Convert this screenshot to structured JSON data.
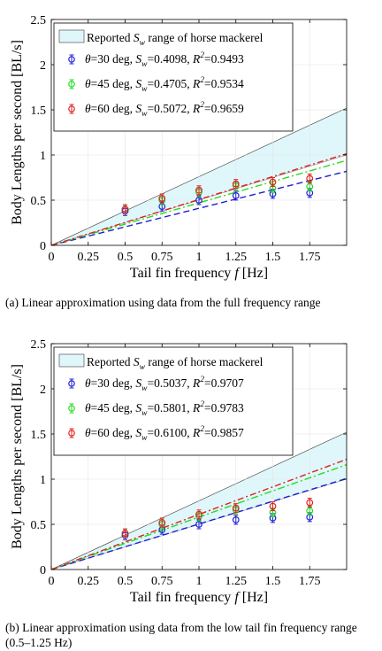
{
  "chart_data": [
    {
      "type": "scatter",
      "xlabel": "Tail fin frequency f [Hz]",
      "ylabel": "Body Lengths per second [BL/s]",
      "xlim": [
        0,
        2
      ],
      "ylim": [
        0,
        2.5
      ],
      "xticks": [
        "0",
        "0.25",
        "0.5",
        "0.75",
        "1",
        "1.25",
        "1.5",
        "1.75"
      ],
      "yticks": [
        "0",
        "0.5",
        "1",
        "1.5",
        "2",
        "2.5"
      ],
      "grid": true,
      "legend_position": "top-left",
      "shaded_region": {
        "label": "Reported S_w range of horse mackerel",
        "color": "#dff7fb",
        "lower_slope": 0.5,
        "upper_slope": 0.76
      },
      "series": [
        {
          "label": "θ=30 deg, S_w=0.4098, R²=0.9493",
          "theta": "30",
          "sw": "0.4098",
          "r2": "0.9493",
          "slope": 0.4098,
          "color": "#1f1fd6",
          "x": [
            0.5,
            0.75,
            1.0,
            1.25,
            1.5,
            1.75
          ],
          "y": [
            0.38,
            0.43,
            0.5,
            0.55,
            0.57,
            0.58
          ]
        },
        {
          "label": "θ=45 deg, S_w=0.4705, R²=0.9534",
          "theta": "45",
          "sw": "0.4705",
          "r2": "0.9534",
          "slope": 0.4705,
          "color": "#22dd22",
          "x": [
            0.5,
            0.75,
            1.0,
            1.25,
            1.5,
            1.75
          ],
          "y": [
            0.4,
            0.5,
            0.59,
            0.66,
            0.63,
            0.65
          ]
        },
        {
          "label": "θ=60 deg, S_w=0.5072, R²=0.9659",
          "theta": "60",
          "sw": "0.5072",
          "r2": "0.9659",
          "slope": 0.5072,
          "color": "#e02020",
          "x": [
            0.5,
            0.75,
            1.0,
            1.25,
            1.5,
            1.75
          ],
          "y": [
            0.4,
            0.52,
            0.61,
            0.68,
            0.7,
            0.74
          ]
        }
      ],
      "caption": "(a) Linear approximation using data from the full frequency range"
    },
    {
      "type": "scatter",
      "xlabel": "Tail fin frequency f [Hz]",
      "ylabel": "Body Lengths per second [BL/s]",
      "xlim": [
        0,
        2
      ],
      "ylim": [
        0,
        2.5
      ],
      "xticks": [
        "0",
        "0.25",
        "0.5",
        "0.75",
        "1",
        "1.25",
        "1.5",
        "1.75"
      ],
      "yticks": [
        "0",
        "0.5",
        "1",
        "1.5",
        "2",
        "2.5"
      ],
      "grid": true,
      "legend_position": "top-left",
      "shaded_region": {
        "label": "Reported S_w range of horse mackerel",
        "color": "#dff7fb",
        "lower_slope": 0.5,
        "upper_slope": 0.76
      },
      "series": [
        {
          "label": "θ=30 deg, S_w=0.5037, R²=0.9707",
          "theta": "30",
          "sw": "0.5037",
          "r2": "0.9707",
          "slope": 0.5037,
          "color": "#1f1fd6",
          "x": [
            0.5,
            0.75,
            1.0,
            1.25,
            1.5,
            1.75
          ],
          "y": [
            0.38,
            0.44,
            0.5,
            0.55,
            0.57,
            0.58
          ]
        },
        {
          "label": "θ=45 deg, S_w=0.5801, R²=0.9783",
          "theta": "45",
          "sw": "0.5801",
          "r2": "0.9783",
          "slope": 0.5801,
          "color": "#22dd22",
          "x": [
            0.5,
            0.75,
            1.0,
            1.25,
            1.5,
            1.75
          ],
          "y": [
            0.4,
            0.5,
            0.59,
            0.66,
            0.63,
            0.65
          ]
        },
        {
          "label": "θ=60 deg, S_w=0.6100, R²=0.9857",
          "theta": "60",
          "sw": "0.6100",
          "r2": "0.9857",
          "slope": 0.61,
          "color": "#e02020",
          "x": [
            0.5,
            0.75,
            1.0,
            1.25,
            1.5,
            1.75
          ],
          "y": [
            0.4,
            0.52,
            0.61,
            0.68,
            0.7,
            0.74
          ]
        }
      ],
      "caption": "(b) Linear approximation using data from the low tail fin frequency range (0.5–1.25 Hz)"
    }
  ]
}
